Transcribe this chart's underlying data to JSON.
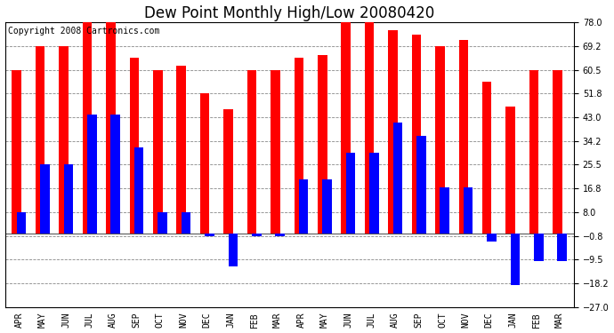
{
  "title": "Dew Point Monthly High/Low 20080420",
  "copyright": "Copyright 2008 Cartronics.com",
  "months": [
    "APR",
    "MAY",
    "JUN",
    "JUL",
    "AUG",
    "SEP",
    "OCT",
    "NOV",
    "DEC",
    "JAN",
    "FEB",
    "MAR",
    "APR",
    "MAY",
    "JUN",
    "JUL",
    "AUG",
    "SEP",
    "OCT",
    "NOV",
    "DEC",
    "JAN",
    "FEB",
    "MAR"
  ],
  "highs": [
    60.5,
    69.2,
    69.2,
    78.0,
    78.0,
    65.0,
    60.5,
    62.0,
    51.8,
    46.0,
    60.5,
    60.5,
    65.0,
    65.8,
    78.0,
    78.0,
    75.2,
    73.4,
    69.2,
    71.6,
    56.0,
    47.0,
    60.5,
    60.5
  ],
  "lows": [
    8.0,
    25.5,
    25.5,
    44.0,
    44.0,
    32.0,
    8.0,
    8.0,
    -0.8,
    -12.0,
    -1.0,
    -1.0,
    20.0,
    20.0,
    30.0,
    30.0,
    41.0,
    36.0,
    17.0,
    17.0,
    -3.0,
    -19.0,
    -10.0,
    -10.0
  ],
  "ylim": [
    -27.0,
    78.0
  ],
  "yticks": [
    78.0,
    69.2,
    60.5,
    51.8,
    43.0,
    34.2,
    25.5,
    16.8,
    8.0,
    -0.8,
    -9.5,
    -18.2,
    -27.0
  ],
  "bar_width": 0.4,
  "high_color": "#ff0000",
  "low_color": "#0000ff",
  "bg_color": "#ffffff",
  "grid_color": "#888888",
  "title_fontsize": 12,
  "copyright_fontsize": 7,
  "tick_fontsize": 7,
  "xlabel_fontsize": 7
}
